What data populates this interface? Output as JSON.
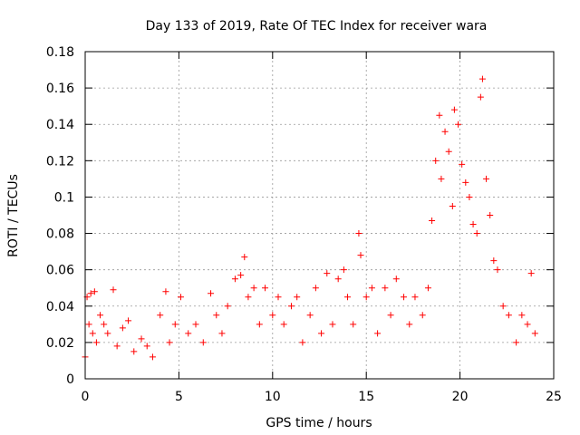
{
  "chart_data": {
    "type": "scatter",
    "title": "Day 133 of 2019, Rate Of TEC Index for receiver wara",
    "xlabel": "GPS time / hours",
    "ylabel": "ROTI / TECUs",
    "xlim": [
      0,
      25
    ],
    "ylim": [
      0,
      0.18
    ],
    "xticks": [
      0,
      5,
      10,
      15,
      20,
      25
    ],
    "xtick_labels": [
      "0",
      "5",
      "10",
      "15",
      "20",
      "25"
    ],
    "yticks": [
      0,
      0.02,
      0.04,
      0.06,
      0.08,
      0.1,
      0.12,
      0.14,
      0.16,
      0.18
    ],
    "ytick_labels": [
      "0",
      "0.02",
      "0.04",
      "0.06",
      "0.08",
      "0.1",
      "0.12",
      "0.14",
      "0.16",
      "0.18"
    ],
    "grid": true,
    "marker": "+",
    "marker_color": "#ff0000",
    "series": [
      {
        "name": "ROTI",
        "color": "#ff0000",
        "x": [
          0.0,
          0.1,
          0.2,
          0.3,
          0.4,
          0.5,
          0.6,
          0.8,
          1.0,
          1.2,
          1.5,
          1.7,
          2.0,
          2.3,
          2.6,
          3.0,
          3.3,
          3.6,
          4.0,
          4.3,
          4.5,
          4.8,
          5.1,
          5.5,
          5.9,
          6.3,
          6.7,
          7.0,
          7.3,
          7.6,
          8.0,
          8.3,
          8.5,
          8.7,
          9.0,
          9.3,
          9.6,
          10.0,
          10.3,
          10.6,
          11.0,
          11.3,
          11.6,
          12.0,
          12.3,
          12.6,
          12.9,
          13.2,
          13.5,
          13.8,
          14.0,
          14.3,
          14.6,
          14.7,
          15.0,
          15.3,
          15.6,
          16.0,
          16.3,
          16.6,
          17.0,
          17.3,
          17.6,
          18.0,
          18.3,
          18.5,
          18.7,
          18.9,
          19.0,
          19.2,
          19.4,
          19.6,
          19.7,
          19.9,
          20.1,
          20.3,
          20.5,
          20.7,
          20.9,
          21.1,
          21.2,
          21.4,
          21.6,
          21.8,
          22.0,
          22.3,
          22.6,
          23.0,
          23.3,
          23.6,
          23.8,
          24.0
        ],
        "y": [
          0.012,
          0.045,
          0.03,
          0.047,
          0.025,
          0.048,
          0.02,
          0.035,
          0.03,
          0.025,
          0.049,
          0.018,
          0.028,
          0.032,
          0.015,
          0.022,
          0.018,
          0.012,
          0.035,
          0.048,
          0.02,
          0.03,
          0.045,
          0.025,
          0.03,
          0.02,
          0.047,
          0.035,
          0.025,
          0.04,
          0.055,
          0.057,
          0.067,
          0.045,
          0.05,
          0.03,
          0.05,
          0.035,
          0.045,
          0.03,
          0.04,
          0.045,
          0.02,
          0.035,
          0.05,
          0.025,
          0.058,
          0.03,
          0.055,
          0.06,
          0.045,
          0.03,
          0.08,
          0.068,
          0.045,
          0.05,
          0.025,
          0.05,
          0.035,
          0.055,
          0.045,
          0.03,
          0.045,
          0.035,
          0.05,
          0.087,
          0.12,
          0.145,
          0.11,
          0.136,
          0.125,
          0.095,
          0.148,
          0.14,
          0.118,
          0.108,
          0.1,
          0.085,
          0.08,
          0.155,
          0.165,
          0.11,
          0.09,
          0.065,
          0.06,
          0.04,
          0.035,
          0.02,
          0.035,
          0.03,
          0.058,
          0.025
        ]
      }
    ]
  }
}
